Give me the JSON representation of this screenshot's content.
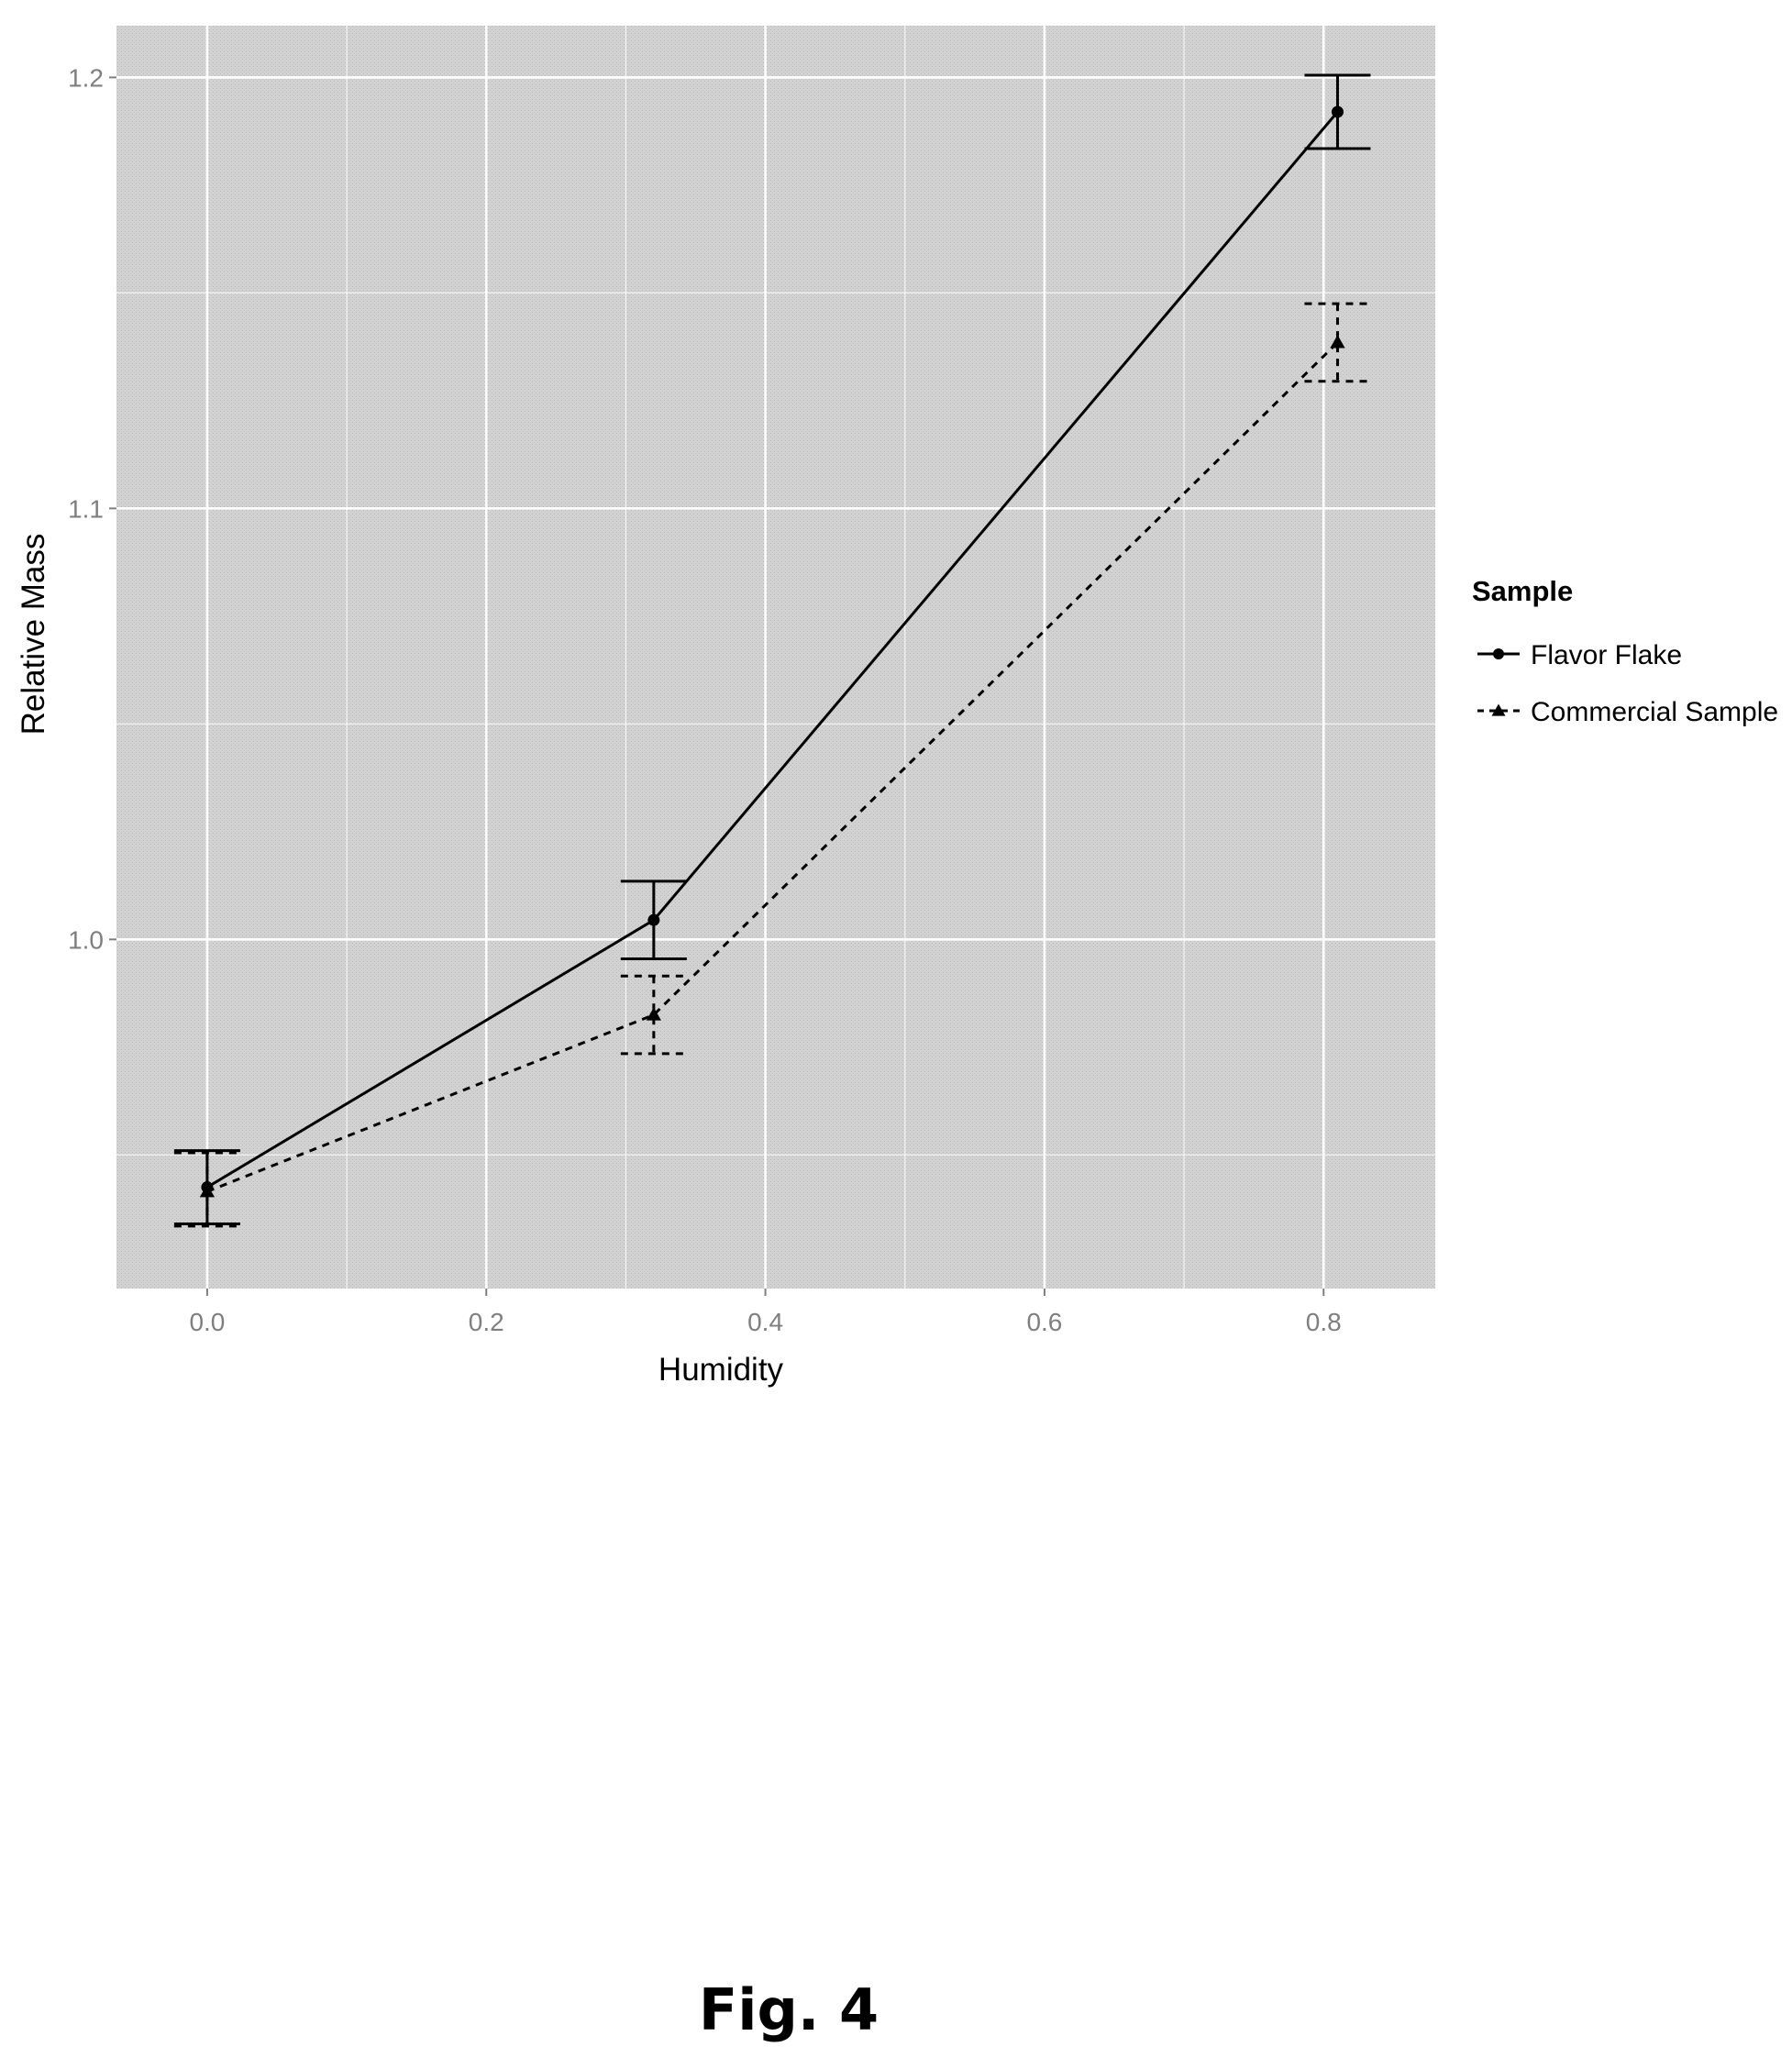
{
  "chart_data": {
    "type": "line",
    "title": "",
    "xlabel": "Humidity",
    "ylabel": "Relative Mass",
    "xlim": [
      -0.065,
      0.88
    ],
    "ylim": [
      0.919,
      1.212
    ],
    "x_ticks": [
      0.0,
      0.2,
      0.4,
      0.6,
      0.8
    ],
    "x_tick_labels": [
      "0.0",
      "0.2",
      "0.4",
      "0.6",
      "0.8"
    ],
    "y_ticks": [
      1.0,
      1.1,
      1.2
    ],
    "y_tick_labels": [
      "1.0",
      "1.1",
      "1.2"
    ],
    "grid": true,
    "legend": {
      "title": "Sample",
      "position": "right"
    },
    "series": [
      {
        "name": "Flavor Flake",
        "marker": "circle",
        "line_style": "solid",
        "x": [
          0.0,
          0.32,
          0.81
        ],
        "y": [
          0.9425,
          1.0045,
          1.192
        ],
        "err_low": [
          0.934,
          0.9955,
          1.1835
        ],
        "err_high": [
          0.951,
          1.0135,
          1.2005
        ]
      },
      {
        "name": "Commercial Sample",
        "marker": "triangle",
        "line_style": "dashed",
        "x": [
          0.0,
          0.32,
          0.81
        ],
        "y": [
          0.9415,
          0.9825,
          1.1385
        ],
        "err_low": [
          0.9335,
          0.9735,
          1.1295
        ],
        "err_high": [
          0.9505,
          0.9915,
          1.1475
        ]
      }
    ],
    "colors": {
      "panel_background": "#cfcfcf",
      "grid": "#ffffff",
      "series": "#000000",
      "tick_text": "#7f7f7f"
    }
  },
  "figure": {
    "caption": "Fig. 4"
  }
}
